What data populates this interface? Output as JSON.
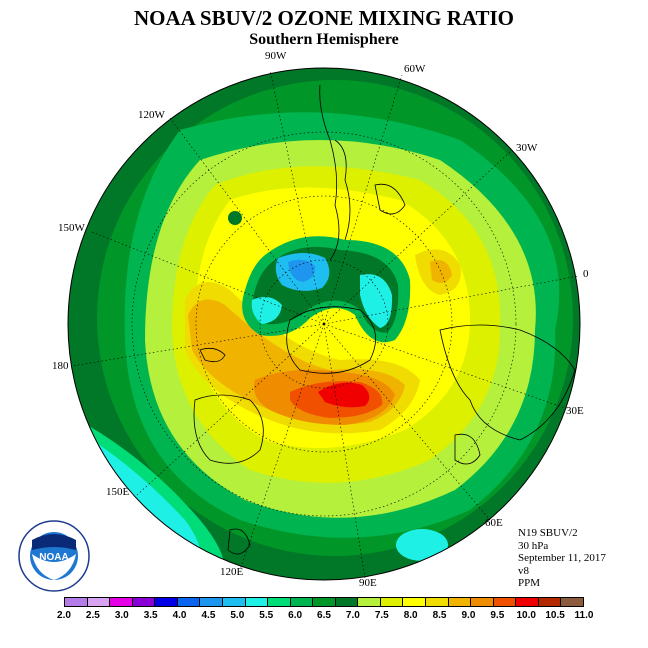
{
  "title": "NOAA SBUV/2 OZONE MIXING RATIO",
  "subtitle": "Southern Hemisphere",
  "longitudes": {
    "l90w": "90W",
    "l60w": "60W",
    "l120w": "120W",
    "l30w": "30W",
    "l150w": "150W",
    "l0": "0",
    "l180": "180",
    "l30e": "30E",
    "l150e": "150E",
    "l60e": "60E",
    "l120e": "120E",
    "l90e": "90E"
  },
  "info": {
    "instrument": "N19 SBUV/2",
    "level": "30 hPa",
    "date": "September 11, 2017",
    "version": "v8",
    "units": "PPM"
  },
  "logo": {
    "text": "NOAA"
  },
  "colorbar": {
    "colors": [
      "#b57be6",
      "#d9a3f2",
      "#e600e6",
      "#8a00d6",
      "#0000e6",
      "#0a64f0",
      "#1e96f0",
      "#1ebef0",
      "#1ef0e6",
      "#00dc78",
      "#00b450",
      "#009628",
      "#007828",
      "#b4f03c",
      "#dcf000",
      "#ffff00",
      "#f0dc00",
      "#f0b400",
      "#f08c00",
      "#f05000",
      "#f00000",
      "#b42800",
      "#8c5a3c"
    ],
    "ticks": [
      "2.0",
      "2.5",
      "3.0",
      "3.5",
      "4.0",
      "4.5",
      "5.0",
      "5.5",
      "6.0",
      "6.5",
      "7.0",
      "7.5",
      "8.0",
      "8.5",
      "9.0",
      "9.5",
      "10.0",
      "10.5",
      "11.0"
    ]
  }
}
